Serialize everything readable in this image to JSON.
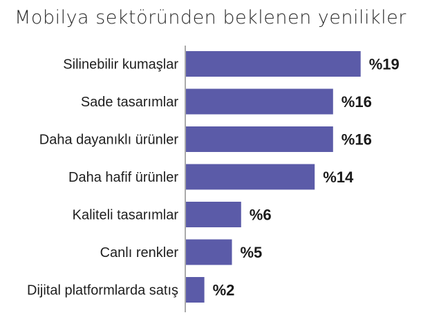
{
  "chart_data": {
    "type": "bar",
    "orientation": "horizontal",
    "title": "Mobilya sektöründen beklenen yenilikler",
    "categories": [
      "Silinebilir kumaşlar",
      "Sade tasarımlar",
      "Daha dayanıklı ürünler",
      "Daha hafif ürünler",
      "Kaliteli tasarımlar",
      "Canlı renkler",
      "Dijital platformlarda satış"
    ],
    "values": [
      19,
      16,
      16,
      14,
      6,
      5,
      2
    ],
    "value_labels": [
      "%19",
      "%16",
      "%16",
      "%14",
      "%6",
      "%5",
      "%2"
    ],
    "xlabel": "",
    "ylabel": "",
    "grid": false,
    "legend": "none",
    "bar_color": "#5b5ba8"
  }
}
